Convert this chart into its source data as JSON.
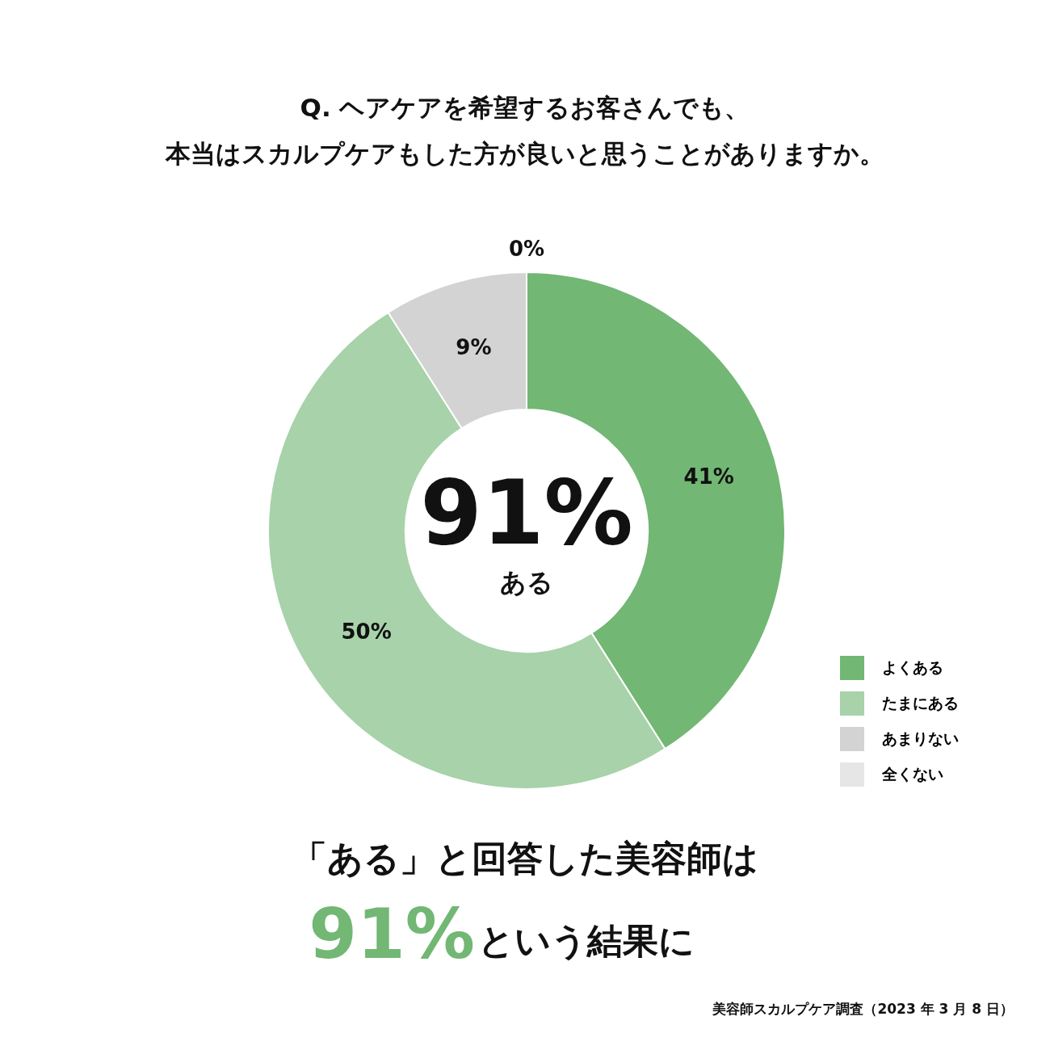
{
  "chart_data": {
    "type": "donut",
    "title": "Q. ヘアケアを希望するお客さんでも、",
    "subtitle": "本当はスカルプケアもした方が良いと思うことがありますか。",
    "categories": [
      "よくある",
      "たまにある",
      "あまりない",
      "全くない"
    ],
    "values": [
      41,
      50,
      9,
      0
    ],
    "colors": [
      "#72b774",
      "#a8d2a9",
      "#d3d3d3",
      "#e6e6e6"
    ],
    "value_labels": [
      "41%",
      "50%",
      "9%",
      "0%"
    ],
    "legend": "bottom right",
    "annotations": [
      "91%",
      "ある",
      "「ある」と回答した美容師は",
      "91%",
      "という結果に",
      "美容師スカルプケア調査（2023 年 3 月 8 日）"
    ]
  }
}
